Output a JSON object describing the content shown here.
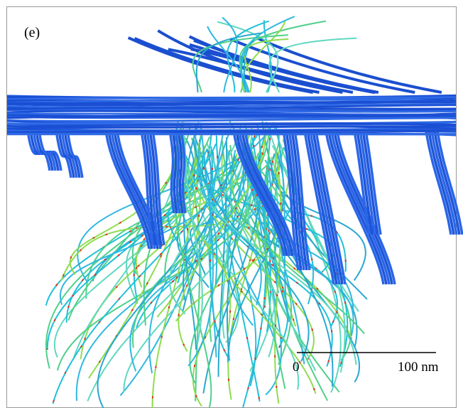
{
  "panel_label": "(e)",
  "scale_bar": {
    "start_label": "0",
    "end_label": "100 nm"
  }
}
